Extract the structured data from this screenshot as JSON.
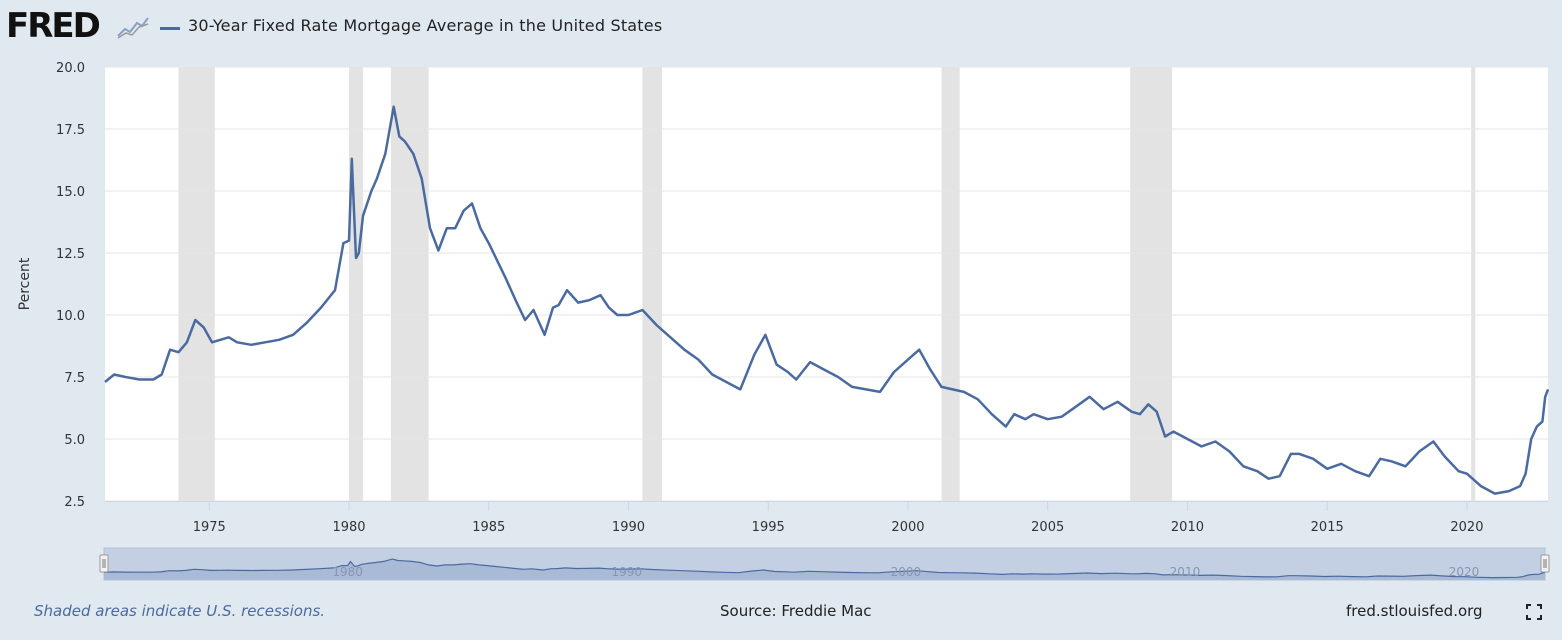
{
  "header": {
    "logo_text": "FRED",
    "series_title": "30-Year Fixed Rate Mortgage Average in the United States"
  },
  "footer": {
    "recession_note": "Shaded areas indicate U.S. recessions.",
    "source": "Source: Freddie Mac",
    "url": "fred.stlouisfed.org"
  },
  "colors": {
    "line": "#4b6aa0",
    "recession": "#e3e3e3",
    "background": "#e1e9f0",
    "plot_bg": "#ffffff",
    "navigator_fill": "#c3cfe3"
  },
  "icons": {
    "logo_graph": "sparkline-icon",
    "fullscreen": "fullscreen-icon"
  },
  "chart_data": {
    "type": "line",
    "title": "30-Year Fixed Rate Mortgage Average in the United States",
    "xlabel": "",
    "ylabel": "Percent",
    "xlim": [
      1971.27,
      2022.9
    ],
    "ylim": [
      2.5,
      20.0
    ],
    "yticks": [
      2.5,
      5.0,
      7.5,
      10.0,
      12.5,
      15.0,
      17.5,
      20.0
    ],
    "ytick_labels": [
      "2.5",
      "5.0",
      "7.5",
      "10.0",
      "12.5",
      "15.0",
      "17.5",
      "20.0"
    ],
    "xticks": [
      1975,
      1980,
      1985,
      1990,
      1995,
      2000,
      2005,
      2010,
      2015,
      2020
    ],
    "xtick_labels": [
      "1975",
      "1980",
      "1985",
      "1990",
      "1995",
      "2000",
      "2005",
      "2010",
      "2015",
      "2020"
    ],
    "navigator_labels": [
      "1980",
      "1990",
      "2000",
      "2010",
      "2020"
    ],
    "recessions": [
      [
        1973.9,
        1975.2
      ],
      [
        1980.0,
        1980.5
      ],
      [
        1981.5,
        1982.85
      ],
      [
        1990.5,
        1991.2
      ],
      [
        2001.2,
        2001.85
      ],
      [
        2007.95,
        2009.45
      ],
      [
        2020.15,
        2020.3
      ]
    ],
    "series": [
      {
        "name": "30-Year Fixed Rate Mortgage Average in the United States",
        "x": [
          1971.27,
          1971.6,
          1972.0,
          1972.5,
          1973.0,
          1973.3,
          1973.6,
          1973.9,
          1974.2,
          1974.5,
          1974.8,
          1975.1,
          1975.4,
          1975.7,
          1976.0,
          1976.5,
          1977.0,
          1977.5,
          1978.0,
          1978.5,
          1979.0,
          1979.5,
          1979.8,
          1980.0,
          1980.1,
          1980.25,
          1980.35,
          1980.5,
          1980.8,
          1981.0,
          1981.3,
          1981.6,
          1981.8,
          1982.0,
          1982.3,
          1982.6,
          1982.9,
          1983.2,
          1983.5,
          1983.8,
          1984.1,
          1984.4,
          1984.7,
          1985.0,
          1985.3,
          1985.6,
          1986.0,
          1986.3,
          1986.6,
          1987.0,
          1987.3,
          1987.5,
          1987.8,
          1988.2,
          1988.6,
          1989.0,
          1989.3,
          1989.6,
          1990.0,
          1990.5,
          1991.0,
          1991.5,
          1992.0,
          1992.5,
          1993.0,
          1993.5,
          1994.0,
          1994.5,
          1994.9,
          1995.3,
          1995.7,
          1996.0,
          1996.5,
          1997.0,
          1997.5,
          1998.0,
          1998.5,
          1999.0,
          1999.5,
          2000.0,
          2000.4,
          2000.8,
          2001.2,
          2001.6,
          2002.0,
          2002.5,
          2003.0,
          2003.5,
          2003.8,
          2004.2,
          2004.5,
          2005.0,
          2005.5,
          2006.0,
          2006.5,
          2007.0,
          2007.5,
          2008.0,
          2008.3,
          2008.6,
          2008.9,
          2009.2,
          2009.5,
          2010.0,
          2010.5,
          2011.0,
          2011.5,
          2012.0,
          2012.5,
          2012.9,
          2013.3,
          2013.7,
          2014.0,
          2014.5,
          2015.0,
          2015.5,
          2016.0,
          2016.5,
          2016.9,
          2017.3,
          2017.8,
          2018.3,
          2018.8,
          2019.2,
          2019.7,
          2020.0,
          2020.5,
          2021.0,
          2021.5,
          2021.9,
          2022.1,
          2022.3,
          2022.5,
          2022.7,
          2022.8,
          2022.9
        ],
        "values": [
          7.3,
          7.6,
          7.5,
          7.4,
          7.4,
          7.6,
          8.6,
          8.5,
          8.9,
          9.8,
          9.5,
          8.9,
          9.0,
          9.1,
          8.9,
          8.8,
          8.9,
          9.0,
          9.2,
          9.7,
          10.3,
          11.0,
          12.9,
          13.0,
          16.3,
          12.3,
          12.5,
          14.0,
          15.0,
          15.5,
          16.5,
          18.4,
          17.2,
          17.0,
          16.5,
          15.5,
          13.5,
          12.6,
          13.5,
          13.5,
          14.2,
          14.5,
          13.5,
          12.9,
          12.2,
          11.5,
          10.5,
          9.8,
          10.2,
          9.2,
          10.3,
          10.4,
          11.0,
          10.5,
          10.6,
          10.8,
          10.3,
          10.0,
          10.0,
          10.2,
          9.6,
          9.1,
          8.6,
          8.2,
          7.6,
          7.3,
          7.0,
          8.4,
          9.2,
          8.0,
          7.7,
          7.4,
          8.1,
          7.8,
          7.5,
          7.1,
          7.0,
          6.9,
          7.7,
          8.2,
          8.6,
          7.8,
          7.1,
          7.0,
          6.9,
          6.6,
          6.0,
          5.5,
          6.0,
          5.8,
          6.0,
          5.8,
          5.9,
          6.3,
          6.7,
          6.2,
          6.5,
          6.1,
          6.0,
          6.4,
          6.1,
          5.1,
          5.3,
          5.0,
          4.7,
          4.9,
          4.5,
          3.9,
          3.7,
          3.4,
          3.5,
          4.4,
          4.4,
          4.2,
          3.8,
          4.0,
          3.7,
          3.5,
          4.2,
          4.1,
          3.9,
          4.5,
          4.9,
          4.3,
          3.7,
          3.6,
          3.1,
          2.8,
          2.9,
          3.1,
          3.6,
          5.0,
          5.5,
          5.7,
          6.7,
          7.0
        ]
      }
    ]
  }
}
